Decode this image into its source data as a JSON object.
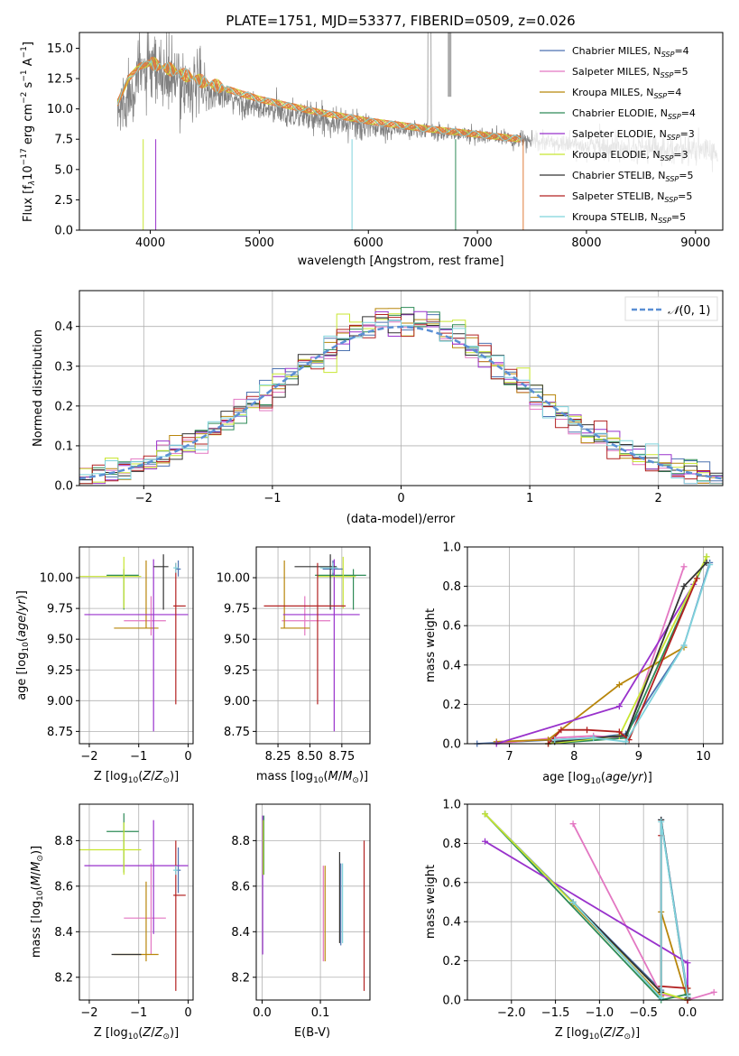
{
  "figure": {
    "title": "PLATE=1751, MJD=53377, FIBERID=0509, z=0.026"
  },
  "series_styles": [
    {
      "name": "Chabrier MILES",
      "nssp": "4",
      "color": "#4c72b0"
    },
    {
      "name": "Salpeter MILES",
      "nssp": "5",
      "color": "#e377c2"
    },
    {
      "name": "Kroupa MILES",
      "nssp": "4",
      "color": "#b8860b"
    },
    {
      "name": "Chabrier ELODIE",
      "nssp": "4",
      "color": "#2e8b57"
    },
    {
      "name": "Salpeter ELODIE",
      "nssp": "3",
      "color": "#9932cc"
    },
    {
      "name": "Kroupa ELODIE",
      "nssp": "3",
      "color": "#c8e632"
    },
    {
      "name": "Chabrier STELIB",
      "nssp": "5",
      "color": "#333333"
    },
    {
      "name": "Salpeter STELIB",
      "nssp": "5",
      "color": "#b22222"
    },
    {
      "name": "Kroupa STELIB",
      "nssp": "5",
      "color": "#7fd3dc"
    }
  ],
  "chart_data": [
    {
      "id": "spectrum",
      "type": "line",
      "xlabel": "wavelength [Angstrom, rest frame]",
      "ylabel": "Flux [f_λ 10^-17 erg cm^-2 s^-1 A^-1]",
      "xlim": [
        3350,
        9250
      ],
      "ylim": [
        0,
        16.3
      ],
      "xticks": [
        4000,
        5000,
        6000,
        7000,
        8000,
        9000
      ],
      "yticks": [
        0.0,
        2.5,
        5.0,
        7.5,
        10.0,
        12.5,
        15.0
      ],
      "grid": false,
      "legend_position": "top-right",
      "data_wavelength_range": [
        3700,
        9200
      ],
      "model_color": "#e07b39",
      "data_color": "#808080",
      "model_continuum": {
        "x": [
          3700,
          3800,
          3900,
          4000,
          4200,
          4500,
          5000,
          5500,
          6000,
          6500,
          7000,
          7400
        ],
        "y": [
          10.5,
          12.5,
          13.5,
          13.8,
          13.2,
          12.2,
          10.8,
          9.8,
          9.0,
          8.4,
          7.9,
          7.5
        ]
      },
      "data_continuum": {
        "x": [
          3700,
          3900,
          4000,
          4500,
          5000,
          5500,
          6000,
          6500,
          7000,
          7500,
          8000,
          8500,
          9000,
          9200
        ],
        "y": [
          9.5,
          13.0,
          13.0,
          11.5,
          10.0,
          9.3,
          8.5,
          8.2,
          7.8,
          7.3,
          7.0,
          6.8,
          6.6,
          6.5
        ]
      }
    },
    {
      "id": "residuals",
      "type": "histogram",
      "xlabel": "(data-model)/error",
      "ylabel": "Normed distribution",
      "xlim": [
        -2.5,
        2.5
      ],
      "ylim": [
        0,
        0.49
      ],
      "xticks": [
        -2,
        -1,
        0,
        1,
        2
      ],
      "yticks": [
        0.0,
        0.1,
        0.2,
        0.3,
        0.4
      ],
      "grid": true,
      "legend": [
        "N(0, 1)"
      ],
      "legend_position": "top-right",
      "reference_curve": "normal(0,1)",
      "bin_width": 0.1
    },
    {
      "id": "age-vs-Z",
      "type": "errorbar",
      "xlabel": "Z [log10(Z/Z⊙)]",
      "ylabel": "age [log10(age/yr)]",
      "xlim": [
        -2.2,
        0.1
      ],
      "ylim": [
        8.65,
        10.25
      ],
      "xticks": [
        -2,
        -1,
        0
      ],
      "yticks": [
        8.75,
        9.0,
        9.25,
        9.5,
        9.75,
        10.0
      ],
      "grid": true,
      "points": [
        {
          "x": -0.2,
          "y": 10.07,
          "xerr": [
            0.05,
            0.05
          ],
          "yerr": [
            0.06,
            0.07
          ]
        },
        {
          "x": -0.75,
          "y": 9.65,
          "xerr": [
            0.55,
            0.3
          ],
          "yerr": [
            0.12,
            0.2
          ]
        },
        {
          "x": -0.85,
          "y": 9.59,
          "xerr": [
            0.65,
            0.25
          ],
          "yerr": [
            0.0,
            0.55
          ]
        },
        {
          "x": -1.3,
          "y": 10.02,
          "xerr": [
            0.35,
            0.3
          ],
          "yerr": [
            0.28,
            0.05
          ]
        },
        {
          "x": -0.7,
          "y": 9.7,
          "xerr": [
            1.4,
            0.7
          ],
          "yerr": [
            0.95,
            0.45
          ]
        },
        {
          "x": -1.3,
          "y": 10.01,
          "xerr": [
            0.9,
            0.35
          ],
          "yerr": [
            0.26,
            0.16
          ]
        },
        {
          "x": -0.5,
          "y": 10.09,
          "xerr": [
            0.2,
            0.1
          ],
          "yerr": [
            0.35,
            0.1
          ]
        },
        {
          "x": -0.25,
          "y": 9.77,
          "xerr": [
            0.05,
            0.2
          ],
          "yerr": [
            0.8,
            0.35
          ]
        },
        {
          "x": -0.25,
          "y": 10.08,
          "xerr": [
            0.05,
            0.05
          ],
          "yerr": [
            0.04,
            0.04
          ]
        }
      ]
    },
    {
      "id": "age-vs-mass",
      "type": "errorbar",
      "xlabel": "mass [log10(M/M⊙)]",
      "ylabel": "",
      "xlim": [
        8.08,
        8.97
      ],
      "ylim": [
        8.65,
        10.25
      ],
      "xticks": [
        8.25,
        8.5,
        8.75
      ],
      "yticks": [
        8.75,
        9.0,
        9.25,
        9.5,
        9.75,
        10.0
      ],
      "grid": true,
      "points": [
        {
          "x": 8.68,
          "y": 10.07,
          "xerr": [
            0.08,
            0.08
          ],
          "yerr": [
            0.06,
            0.07
          ]
        },
        {
          "x": 8.46,
          "y": 9.65,
          "xerr": [
            0.18,
            0.2
          ],
          "yerr": [
            0.12,
            0.2
          ]
        },
        {
          "x": 8.3,
          "y": 9.59,
          "xerr": [
            0.03,
            0.2
          ],
          "yerr": [
            0.0,
            0.55
          ]
        },
        {
          "x": 8.84,
          "y": 10.02,
          "xerr": [
            0.3,
            0.1
          ],
          "yerr": [
            0.28,
            0.05
          ]
        },
        {
          "x": 8.69,
          "y": 9.7,
          "xerr": [
            0.4,
            0.2
          ],
          "yerr": [
            0.95,
            0.45
          ]
        },
        {
          "x": 8.76,
          "y": 10.01,
          "xerr": [
            0.2,
            0.1
          ],
          "yerr": [
            0.26,
            0.16
          ]
        },
        {
          "x": 8.66,
          "y": 10.09,
          "xerr": [
            0.28,
            0.05
          ],
          "yerr": [
            0.35,
            0.1
          ]
        },
        {
          "x": 8.56,
          "y": 9.77,
          "xerr": [
            0.42,
            0.22
          ],
          "yerr": [
            0.8,
            0.35
          ]
        },
        {
          "x": 8.68,
          "y": 10.08,
          "xerr": [
            0.1,
            0.04
          ],
          "yerr": [
            0.04,
            0.04
          ]
        }
      ]
    },
    {
      "id": "mass-weight-vs-age",
      "type": "line",
      "xlabel": "age [log10(age/yr)]",
      "ylabel": "mass weight",
      "xlim": [
        6.35,
        10.3
      ],
      "ylim": [
        0,
        1.0
      ],
      "xticks": [
        7,
        8,
        9,
        10
      ],
      "yticks": [
        0.0,
        0.2,
        0.4,
        0.6,
        0.8,
        1.0
      ],
      "grid": true,
      "series": [
        {
          "name": "Chabrier MILES",
          "x": [
            6.5,
            7.7,
            8.3,
            8.8,
            9.7,
            10.1
          ],
          "y": [
            0.0,
            0.02,
            0.03,
            0.05,
            0.5,
            0.92
          ]
        },
        {
          "name": "Salpeter MILES",
          "x": [
            6.8,
            7.7,
            8.3,
            8.8,
            9.7
          ],
          "y": [
            0.0,
            0.03,
            0.04,
            0.03,
            0.9
          ]
        },
        {
          "name": "Kroupa MILES",
          "x": [
            6.8,
            7.6,
            8.7,
            9.7
          ],
          "y": [
            0.01,
            0.02,
            0.3,
            0.49
          ]
        },
        {
          "name": "Chabrier ELODIE",
          "x": [
            7.6,
            8.8,
            10.05
          ],
          "y": [
            0.0,
            0.03,
            0.95
          ]
        },
        {
          "name": "Salpeter ELODIE",
          "x": [
            6.8,
            8.7,
            9.85
          ],
          "y": [
            0.0,
            0.19,
            0.81
          ]
        },
        {
          "name": "Kroupa ELODIE",
          "x": [
            7.6,
            8.7,
            10.05
          ],
          "y": [
            0.0,
            0.04,
            0.95
          ]
        },
        {
          "name": "Chabrier STELIB",
          "x": [
            7.7,
            8.3,
            8.8,
            9.7,
            10.05
          ],
          "y": [
            0.01,
            0.03,
            0.04,
            0.8,
            0.92
          ]
        },
        {
          "name": "Salpeter STELIB",
          "x": [
            7.6,
            7.8,
            8.2,
            8.7,
            8.85,
            9.9
          ],
          "y": [
            0.0,
            0.07,
            0.07,
            0.06,
            0.02,
            0.84
          ]
        },
        {
          "name": "Kroupa STELIB",
          "x": [
            7.7,
            8.3,
            8.8,
            9.7,
            10.1
          ],
          "y": [
            0.02,
            0.03,
            0.01,
            0.5,
            0.91
          ]
        }
      ]
    },
    {
      "id": "mass-vs-Z",
      "type": "errorbar",
      "xlabel": "Z [log10(Z/Z⊙)]",
      "ylabel": "mass [log10(M/M⊙)]",
      "xlim": [
        -2.2,
        0.1
      ],
      "ylim": [
        8.1,
        8.96
      ],
      "xticks": [
        -2,
        -1,
        0
      ],
      "yticks": [
        8.2,
        8.4,
        8.6,
        8.8
      ],
      "grid": true,
      "points": [
        {
          "x": -0.2,
          "y": 8.67,
          "xerr": [
            0.05,
            0.05
          ],
          "yerr": [
            0.1,
            0.1
          ]
        },
        {
          "x": -0.75,
          "y": 8.46,
          "xerr": [
            0.55,
            0.3
          ],
          "yerr": [
            0.16,
            0.24
          ]
        },
        {
          "x": -0.85,
          "y": 8.3,
          "xerr": [
            0.65,
            0.25
          ],
          "yerr": [
            0.03,
            0.32
          ]
        },
        {
          "x": -1.3,
          "y": 8.84,
          "xerr": [
            0.35,
            0.3
          ],
          "yerr": [
            0.18,
            0.08
          ]
        },
        {
          "x": -0.7,
          "y": 8.69,
          "xerr": [
            1.4,
            0.7
          ],
          "yerr": [
            0.3,
            0.2
          ]
        },
        {
          "x": -1.3,
          "y": 8.76,
          "xerr": [
            0.9,
            0.35
          ],
          "yerr": [
            0.11,
            0.12
          ]
        },
        {
          "x": -1.2,
          "y": 8.3,
          "xerr": [
            0.35,
            0.25
          ],
          "yerr": [
            0.0,
            0.0
          ]
        },
        {
          "x": -0.25,
          "y": 8.56,
          "xerr": [
            0.05,
            0.2
          ],
          "yerr": [
            0.42,
            0.24
          ]
        },
        {
          "x": -0.25,
          "y": 8.67,
          "xerr": [
            0.05,
            0.05
          ],
          "yerr": [
            0.02,
            0.02
          ]
        }
      ]
    },
    {
      "id": "mass-vs-ebv",
      "type": "errorbar",
      "xlabel": "E(B-V)",
      "ylabel": "",
      "xlim": [
        -0.01,
        0.185
      ],
      "ylim": [
        8.1,
        8.96
      ],
      "xticks": [
        0.0,
        0.1
      ],
      "yticks": [
        8.2,
        8.4,
        8.6,
        8.8
      ],
      "grid": true,
      "points": [
        {
          "x": 0.135,
          "y": 8.52,
          "yerr": [
            0.18,
            0.18
          ]
        },
        {
          "x": 0.105,
          "y": 8.49,
          "yerr": [
            0.22,
            0.2
          ]
        },
        {
          "x": 0.108,
          "y": 8.48,
          "yerr": [
            0.21,
            0.21
          ]
        },
        {
          "x": 0.003,
          "y": 8.73,
          "yerr": [
            0.08,
            0.18
          ]
        },
        {
          "x": 0.001,
          "y": 8.6,
          "yerr": [
            0.3,
            0.31
          ]
        },
        {
          "x": 0.002,
          "y": 8.77,
          "yerr": [
            0.12,
            0.12
          ]
        },
        {
          "x": 0.133,
          "y": 8.55,
          "yerr": [
            0.2,
            0.2
          ]
        },
        {
          "x": 0.175,
          "y": 8.47,
          "yerr": [
            0.33,
            0.33
          ]
        },
        {
          "x": 0.138,
          "y": 8.53,
          "yerr": [
            0.18,
            0.17
          ]
        }
      ]
    },
    {
      "id": "mass-weight-vs-Z",
      "type": "line",
      "xlabel": "Z [log10(Z/Z⊙)]",
      "ylabel": "mass weight",
      "xlim": [
        -2.5,
        0.4
      ],
      "ylim": [
        0,
        1.0
      ],
      "xticks": [
        -2.0,
        -1.5,
        -1.0,
        -0.5,
        0.0
      ],
      "yticks": [
        0.0,
        0.2,
        0.4,
        0.6,
        0.8,
        1.0
      ],
      "grid": true,
      "series": [
        {
          "name": "Chabrier MILES",
          "x": [
            -2.3,
            -1.3,
            -0.3,
            -0.3,
            0.0
          ],
          "y": [
            0.95,
            0.5,
            0.05,
            0.92,
            0.03
          ]
        },
        {
          "name": "Salpeter MILES",
          "x": [
            -1.3,
            -0.3,
            0.0,
            0.3
          ],
          "y": [
            0.9,
            0.03,
            0.0,
            0.04
          ]
        },
        {
          "name": "Kroupa MILES",
          "x": [
            -1.3,
            -0.3,
            -0.3,
            0.0,
            0.0
          ],
          "y": [
            0.49,
            0.02,
            0.45,
            0.0,
            0.06
          ]
        },
        {
          "name": "Chabrier ELODIE",
          "x": [
            -2.3,
            -0.3,
            0.0
          ],
          "y": [
            0.95,
            0.0,
            0.03
          ]
        },
        {
          "name": "Salpeter ELODIE",
          "x": [
            -2.3,
            0.0,
            0.0
          ],
          "y": [
            0.81,
            0.19,
            0.0
          ]
        },
        {
          "name": "Kroupa ELODIE",
          "x": [
            -2.3,
            -0.3,
            0.0
          ],
          "y": [
            0.95,
            0.04,
            0.0
          ]
        },
        {
          "name": "Chabrier STELIB",
          "x": [
            -1.3,
            -0.3,
            -0.3,
            0.0
          ],
          "y": [
            0.5,
            0.04,
            0.92,
            0.01
          ]
        },
        {
          "name": "Salpeter STELIB",
          "x": [
            -0.3,
            -0.3,
            0.0,
            0.0
          ],
          "y": [
            0.84,
            0.07,
            0.06,
            0.0
          ]
        },
        {
          "name": "Kroupa STELIB",
          "x": [
            -1.3,
            -0.3,
            -0.3,
            0.0
          ],
          "y": [
            0.5,
            0.01,
            0.91,
            0.02
          ]
        }
      ]
    }
  ]
}
